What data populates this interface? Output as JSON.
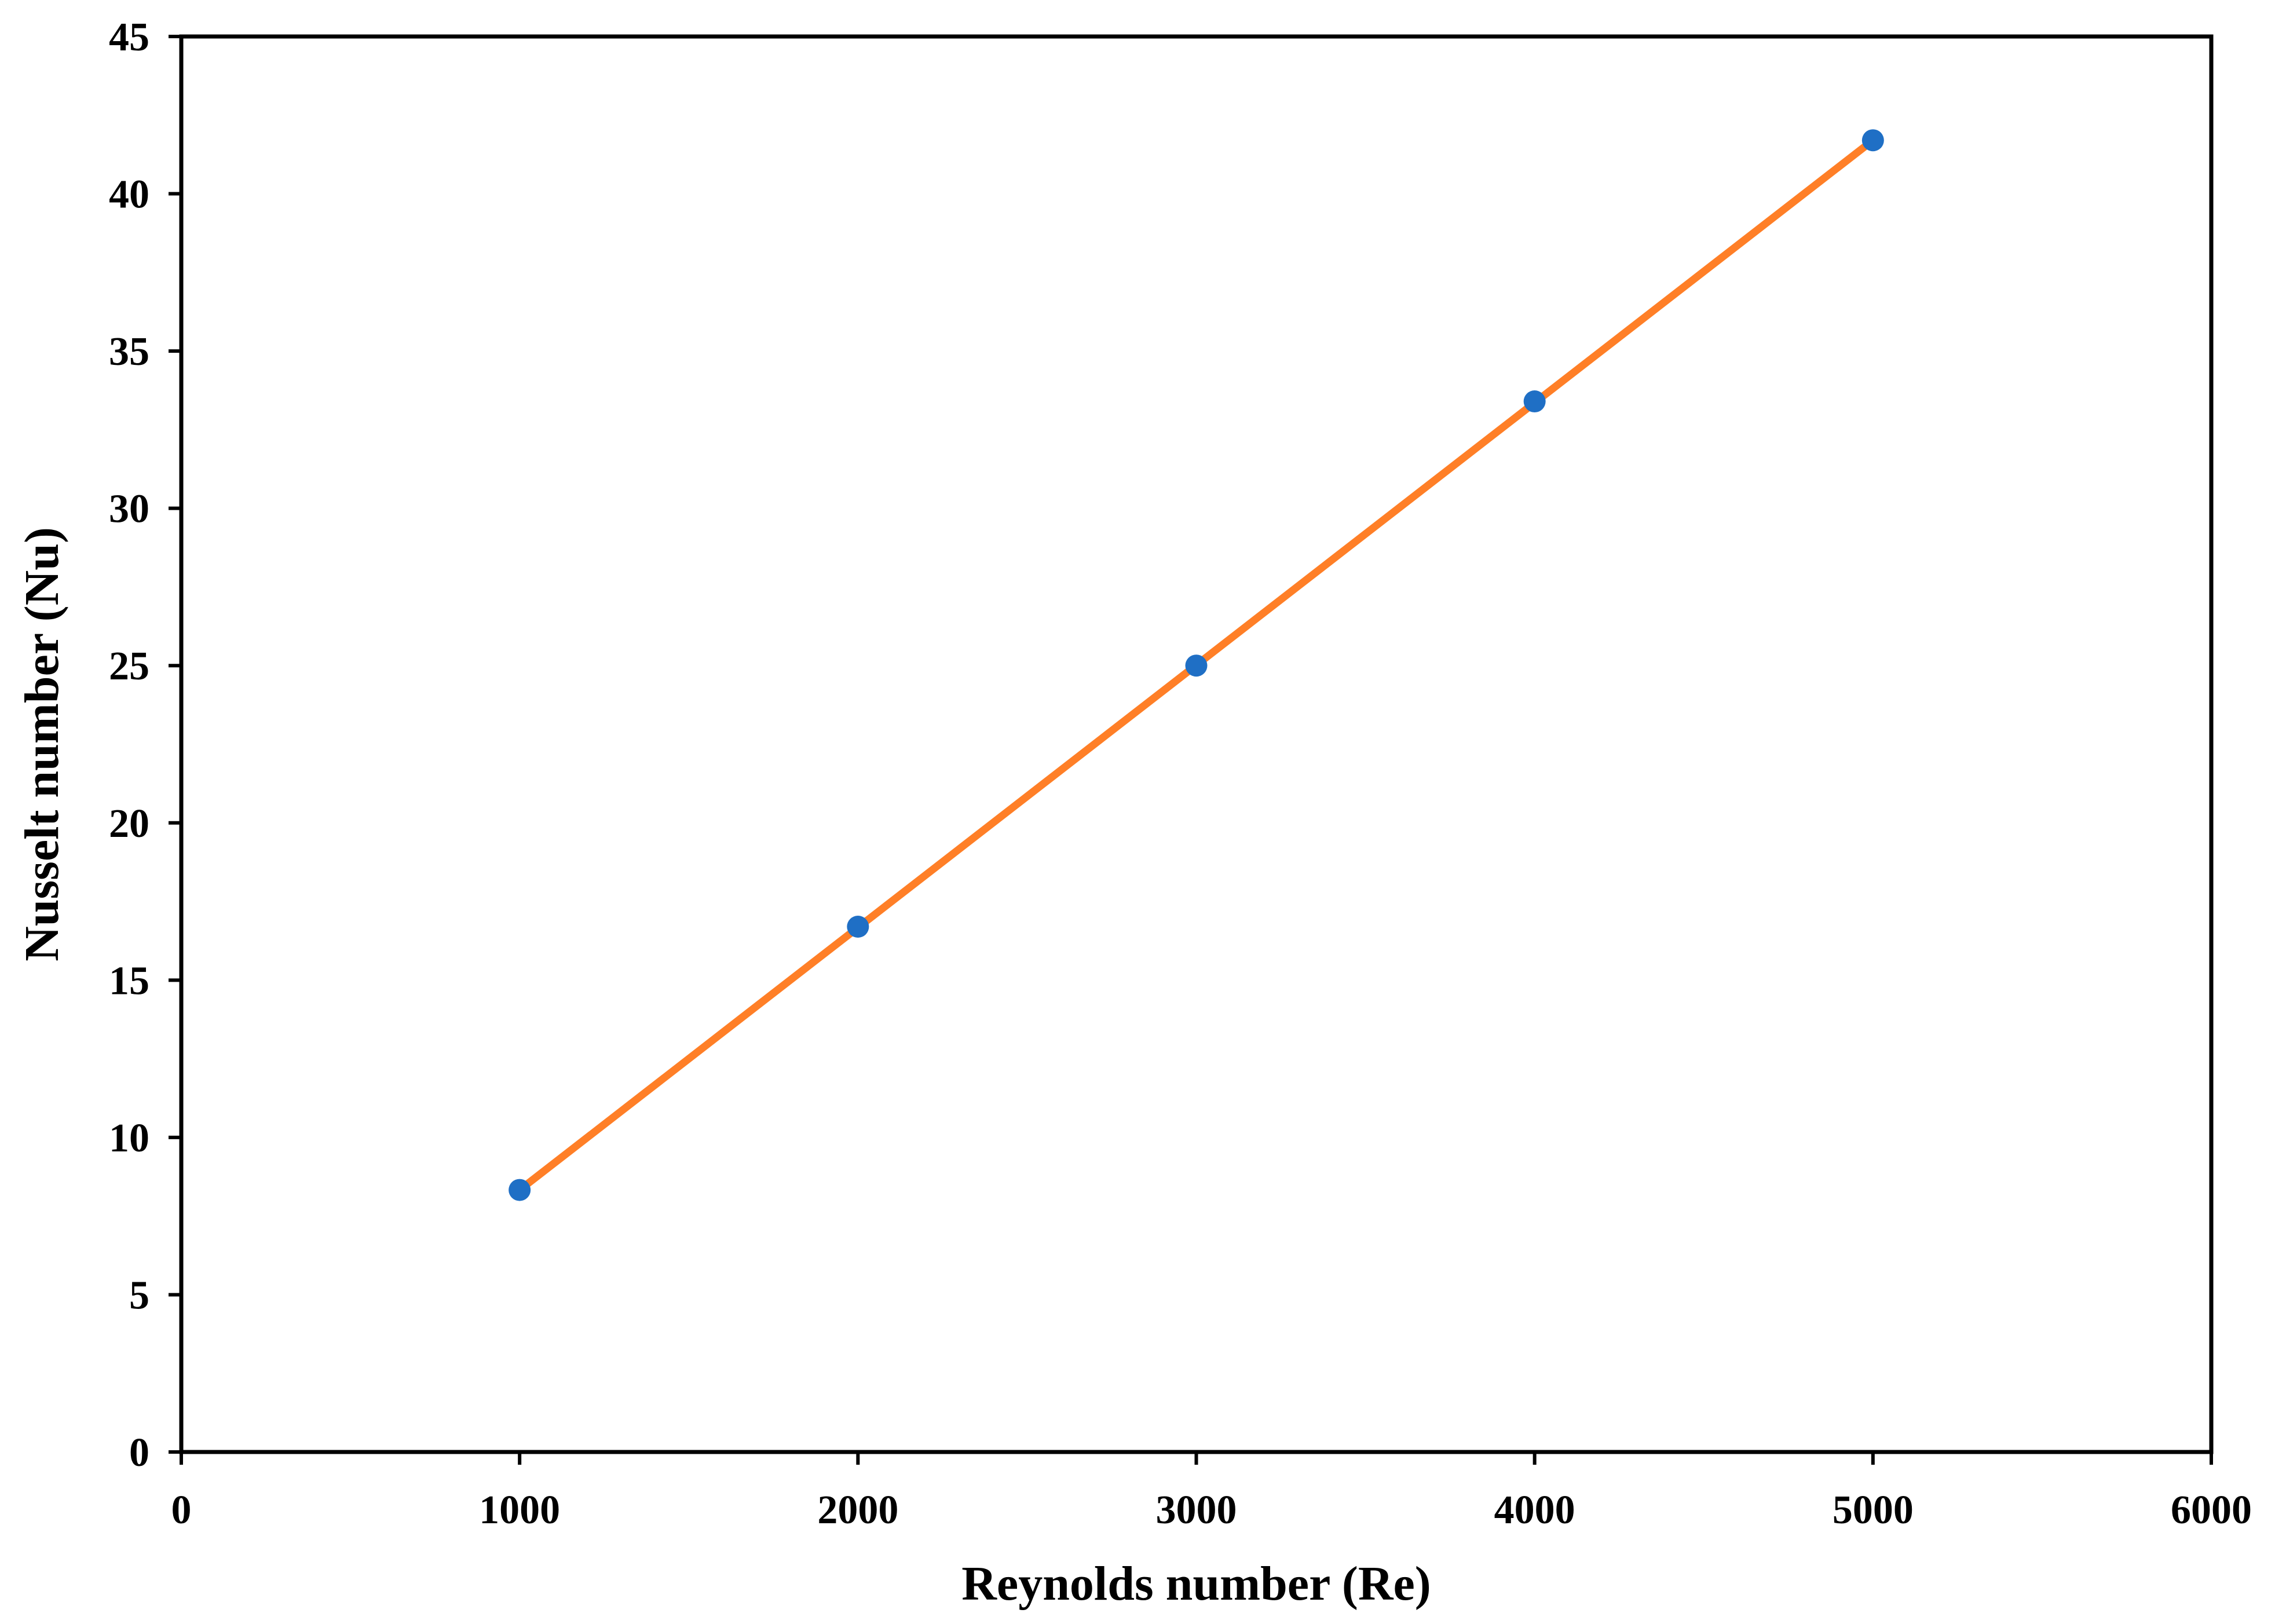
{
  "chart_data": {
    "type": "line",
    "title": "",
    "xlabel": "Reynolds number (Re)",
    "ylabel": "Nusselt number (Nu)",
    "xlim": [
      0,
      6000
    ],
    "ylim": [
      0,
      45
    ],
    "xticks": [
      0,
      1000,
      2000,
      3000,
      4000,
      5000,
      6000
    ],
    "yticks": [
      0,
      5,
      10,
      15,
      20,
      25,
      30,
      35,
      40,
      45
    ],
    "grid": false,
    "legend": "none",
    "series": [
      {
        "type": "scatter",
        "marker_color": "#1f6fc5",
        "x": [
          1000,
          2000,
          3000,
          4000,
          5000
        ],
        "y": [
          8.33,
          16.7,
          25.0,
          33.4,
          41.7
        ]
      },
      {
        "type": "line",
        "line_color": "#ff7f27",
        "x": [
          1000,
          5000
        ],
        "y": [
          8.33,
          41.7
        ]
      }
    ]
  }
}
